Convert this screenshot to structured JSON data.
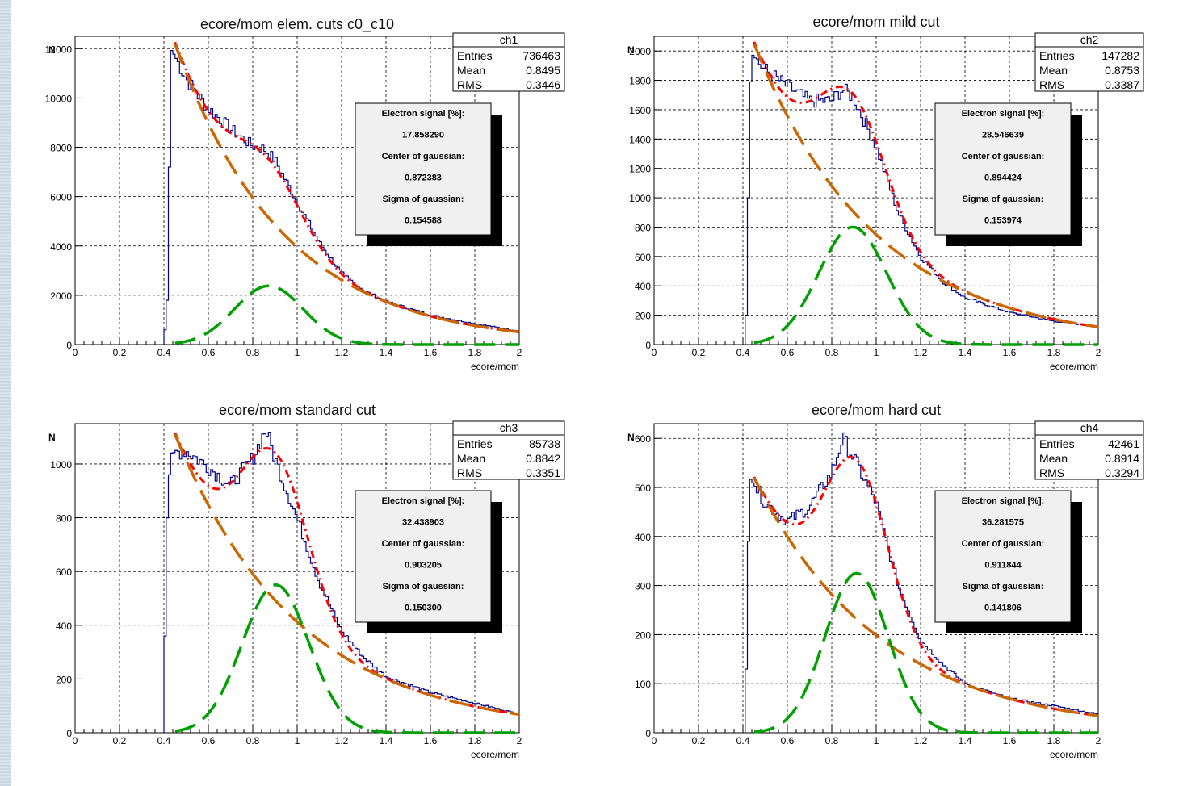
{
  "chart_data": [
    {
      "type": "histogram",
      "title": "ecore/mom elem. cuts c0_c10",
      "xlabel": "ecore/mom",
      "ylabel": "N",
      "xlim": [
        0,
        2
      ],
      "ylim": [
        0,
        12500
      ],
      "xticks": [
        "0",
        "0.2",
        "0.4",
        "0.6",
        "0.8",
        "1",
        "1.2",
        "1.4",
        "1.6",
        "1.8",
        "2"
      ],
      "yticks": [
        0,
        2000,
        4000,
        6000,
        8000,
        10000,
        12000
      ],
      "grid": true,
      "stats": {
        "name": "ch1",
        "rows": [
          [
            "Entries",
            "736463"
          ],
          [
            "Mean",
            "0.8495"
          ],
          [
            "RMS",
            "0.3446"
          ]
        ]
      },
      "fit_box": {
        "lines": [
          "Electron signal [%]:",
          "17.858290",
          "Center of gaussian:",
          "0.872383",
          "Sigma of gaussian:",
          "0.154588"
        ]
      },
      "model": {
        "gauss_amp": 2380,
        "gauss_center": 0.872383,
        "gauss_sigma": 0.154588,
        "exp_amp": 12200,
        "exp_decay": 2.05,
        "x_start": 0.45
      },
      "histogram": [
        [
          0.4,
          0
        ],
        [
          0.42,
          2400
        ],
        [
          0.43,
          12000
        ],
        [
          0.45,
          11700
        ],
        [
          0.5,
          10800
        ],
        [
          0.55,
          10150
        ],
        [
          0.6,
          9600
        ],
        [
          0.7,
          8750
        ],
        [
          0.8,
          8050
        ],
        [
          0.85,
          7950
        ],
        [
          0.9,
          7500
        ],
        [
          1.0,
          5800
        ],
        [
          1.1,
          4150
        ],
        [
          1.2,
          2900
        ],
        [
          1.3,
          2200
        ],
        [
          1.4,
          1750
        ],
        [
          1.6,
          1200
        ],
        [
          1.8,
          850
        ],
        [
          2.0,
          550
        ]
      ]
    },
    {
      "type": "histogram",
      "title": "ecore/mom mild cut",
      "xlabel": "ecore/mom",
      "ylabel": "N",
      "xlim": [
        0,
        2
      ],
      "ylim": [
        0,
        2100
      ],
      "xticks": [
        "0",
        "0.2",
        "0.4",
        "0.6",
        "0.8",
        "1",
        "1.2",
        "1.4",
        "1.6",
        "1.8",
        "2"
      ],
      "yticks": [
        0,
        200,
        400,
        600,
        800,
        1000,
        1200,
        1400,
        1600,
        1800,
        2000
      ],
      "grid": true,
      "stats": {
        "name": "ch2",
        "rows": [
          [
            "Entries",
            "147282"
          ],
          [
            "Mean",
            "0.8753"
          ],
          [
            "RMS",
            "0.3387"
          ]
        ]
      },
      "fit_box": {
        "lines": [
          "Electron signal [%]:",
          "28.546639",
          "Center of gaussian:",
          "0.894424",
          "Sigma of gaussian:",
          "0.153974"
        ]
      },
      "model": {
        "gauss_amp": 800,
        "gauss_center": 0.894424,
        "gauss_sigma": 0.153974,
        "exp_amp": 2050,
        "exp_decay": 1.83,
        "x_start": 0.45
      },
      "histogram": [
        [
          0.41,
          0
        ],
        [
          0.42,
          400
        ],
        [
          0.43,
          1600
        ],
        [
          0.44,
          1980
        ],
        [
          0.5,
          1870
        ],
        [
          0.6,
          1760
        ],
        [
          0.7,
          1660
        ],
        [
          0.8,
          1660
        ],
        [
          0.85,
          1740
        ],
        [
          0.9,
          1680
        ],
        [
          1.0,
          1350
        ],
        [
          1.1,
          900
        ],
        [
          1.2,
          600
        ],
        [
          1.3,
          430
        ],
        [
          1.4,
          320
        ],
        [
          1.6,
          220
        ],
        [
          1.8,
          160
        ],
        [
          2.0,
          120
        ]
      ]
    },
    {
      "type": "histogram",
      "title": "ecore/mom standard cut",
      "xlabel": "ecore/mom",
      "ylabel": "N",
      "xlim": [
        0,
        2
      ],
      "ylim": [
        0,
        1150
      ],
      "xticks": [
        "0",
        "0.2",
        "0.4",
        "0.6",
        "0.8",
        "1",
        "1.2",
        "1.4",
        "1.6",
        "1.8",
        "2"
      ],
      "yticks": [
        0,
        200,
        400,
        600,
        800,
        1000
      ],
      "grid": true,
      "stats": {
        "name": "ch3",
        "rows": [
          [
            "Entries",
            "85738"
          ],
          [
            "Mean",
            "0.8842"
          ],
          [
            "RMS",
            "0.3351"
          ]
        ]
      },
      "fit_box": {
        "lines": [
          "Electron signal [%]:",
          "32.438903",
          "Center of gaussian:",
          "0.903205",
          "Sigma of gaussian:",
          "0.150300"
        ]
      },
      "model": {
        "gauss_amp": 550,
        "gauss_center": 0.903205,
        "gauss_sigma": 0.1503,
        "exp_amp": 1110,
        "exp_decay": 1.8,
        "x_start": 0.45
      },
      "histogram": [
        [
          0.4,
          0
        ],
        [
          0.41,
          720
        ],
        [
          0.43,
          1040
        ],
        [
          0.5,
          1050
        ],
        [
          0.6,
          990
        ],
        [
          0.7,
          920
        ],
        [
          0.8,
          1020
        ],
        [
          0.86,
          1130
        ],
        [
          0.9,
          1020
        ],
        [
          1.0,
          800
        ],
        [
          1.1,
          560
        ],
        [
          1.2,
          380
        ],
        [
          1.3,
          280
        ],
        [
          1.4,
          210
        ],
        [
          1.6,
          150
        ],
        [
          1.8,
          110
        ],
        [
          2.0,
          70
        ]
      ]
    },
    {
      "type": "histogram",
      "title": "ecore/mom hard cut",
      "xlabel": "ecore/mom",
      "ylabel": "N",
      "xlim": [
        0,
        2
      ],
      "ylim": [
        0,
        630
      ],
      "xticks": [
        "0",
        "0.2",
        "0.4",
        "0.6",
        "0.8",
        "1",
        "1.2",
        "1.4",
        "1.6",
        "1.8",
        "2"
      ],
      "yticks": [
        0,
        100,
        200,
        300,
        400,
        500,
        600
      ],
      "grid": true,
      "stats": {
        "name": "ch4",
        "rows": [
          [
            "Entries",
            "42461"
          ],
          [
            "Mean",
            "0.8914"
          ],
          [
            "RMS",
            "0.3294"
          ]
        ]
      },
      "fit_box": {
        "lines": [
          "Electron signal [%]:",
          "36.281575",
          "Center of gaussian:",
          "0.911844",
          "Sigma of gaussian:",
          "0.141806"
        ]
      },
      "model": {
        "gauss_amp": 325,
        "gauss_center": 0.911844,
        "gauss_sigma": 0.141806,
        "exp_amp": 520,
        "exp_decay": 1.75,
        "x_start": 0.45
      },
      "histogram": [
        [
          0.41,
          0
        ],
        [
          0.43,
          520
        ],
        [
          0.5,
          470
        ],
        [
          0.6,
          430
        ],
        [
          0.7,
          460
        ],
        [
          0.8,
          530
        ],
        [
          0.85,
          600
        ],
        [
          0.9,
          560
        ],
        [
          1.0,
          470
        ],
        [
          1.1,
          300
        ],
        [
          1.2,
          190
        ],
        [
          1.3,
          140
        ],
        [
          1.4,
          100
        ],
        [
          1.6,
          70
        ],
        [
          1.8,
          55
        ],
        [
          2.0,
          38
        ]
      ]
    }
  ],
  "colors": {
    "histogram": "#00008b",
    "total_fit": "#ff0000",
    "background_fit": "#cc6600",
    "signal_fit": "#00a000",
    "grid": "#000000"
  }
}
